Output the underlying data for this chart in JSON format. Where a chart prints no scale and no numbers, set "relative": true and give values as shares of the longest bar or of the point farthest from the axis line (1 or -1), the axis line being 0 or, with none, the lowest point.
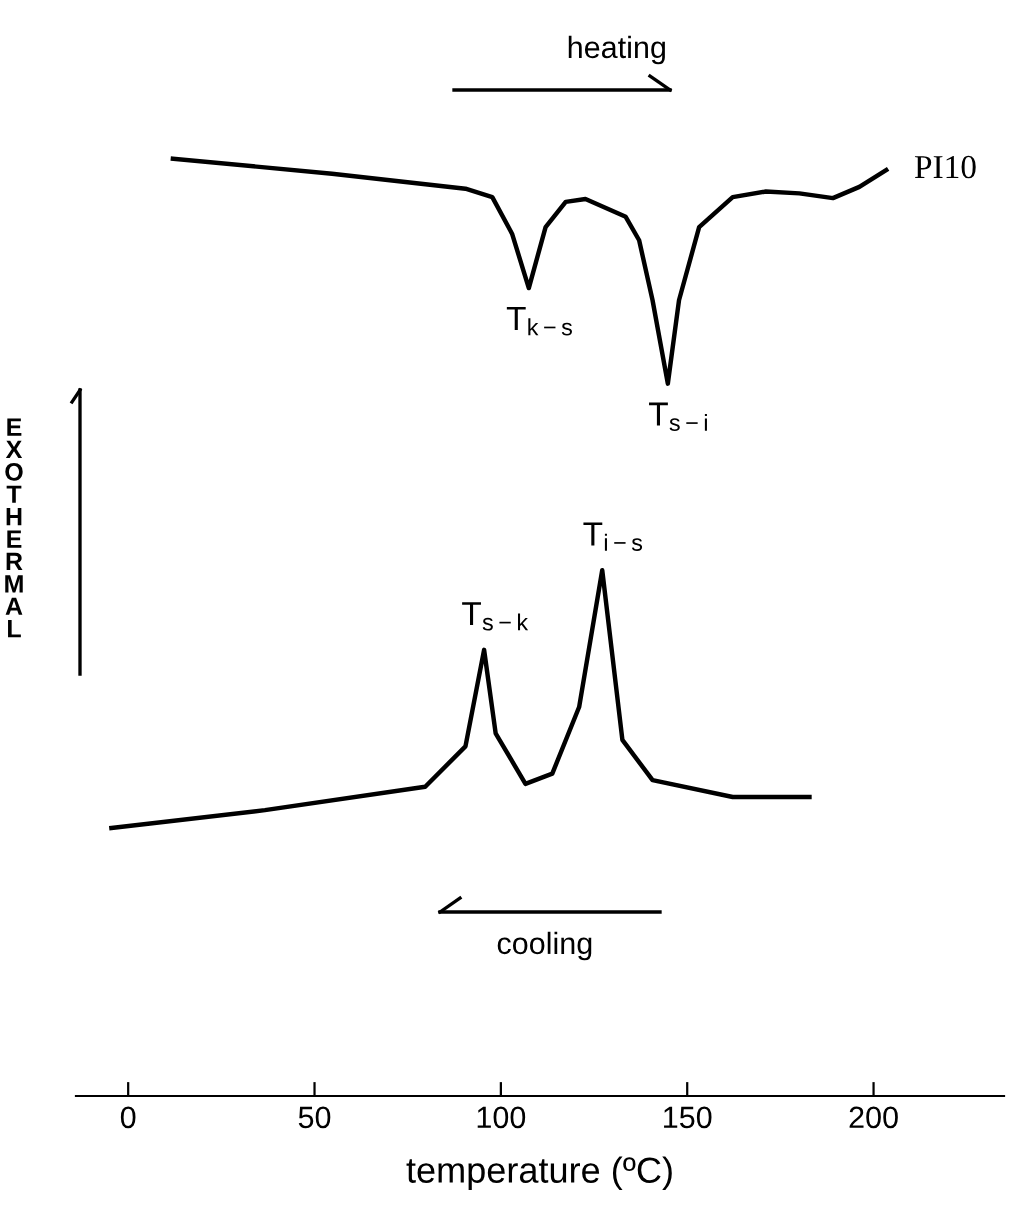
{
  "chart_data": {
    "type": "line",
    "relative": true,
    "xlabel": "temperature (ºC)",
    "ylabel": "EXOTHERMAL",
    "xlim": [
      -14,
      235
    ],
    "xticks": [
      0,
      50,
      100,
      150,
      200
    ],
    "grid": false,
    "legend": false,
    "marker": "none",
    "line_style": "solid",
    "series": [
      {
        "name": "PI10",
        "color": "#000000",
        "x": [
          12,
          54.7,
          90.5,
          97.7,
          103.0,
          107.5,
          112.0,
          117.4,
          122.7,
          133.5,
          137.1,
          140.7,
          144.8,
          147.8,
          153.2,
          162.2,
          171.1,
          180.1,
          189.1,
          196.2,
          203.4
        ],
        "values": [
          1.0,
          0.984,
          0.968,
          0.959,
          0.92,
          0.862,
          0.927,
          0.954,
          0.957,
          0.938,
          0.913,
          0.849,
          0.76,
          0.849,
          0.927,
          0.959,
          0.965,
          0.963,
          0.958,
          0.97,
          0.988
        ]
      },
      {
        "color": "#000000",
        "x": [
          -4.5,
          36.7,
          79.7,
          90.5,
          95.5,
          98.6,
          106.6,
          113.8,
          121.0,
          127.2,
          132.6,
          140.7,
          162.2,
          182.8
        ],
        "values": [
          0.286,
          0.305,
          0.33,
          0.373,
          0.476,
          0.387,
          0.333,
          0.344,
          0.415,
          0.561,
          0.38,
          0.337,
          0.319,
          0.319
        ]
      }
    ],
    "annotations": [
      "heating",
      "cooling",
      {
        "text": "T$_{k−s}$",
        "x": 107.5,
        "y": 0.862
      },
      {
        "text": "T$_{s−i}$",
        "x": 144.8,
        "y": 0.76
      },
      {
        "text": "T$_{s−k}$",
        "x": 95.5,
        "y": 0.476
      },
      {
        "text": "T$_{i−s}$",
        "x": 127.2,
        "y": 0.561
      }
    ]
  }
}
